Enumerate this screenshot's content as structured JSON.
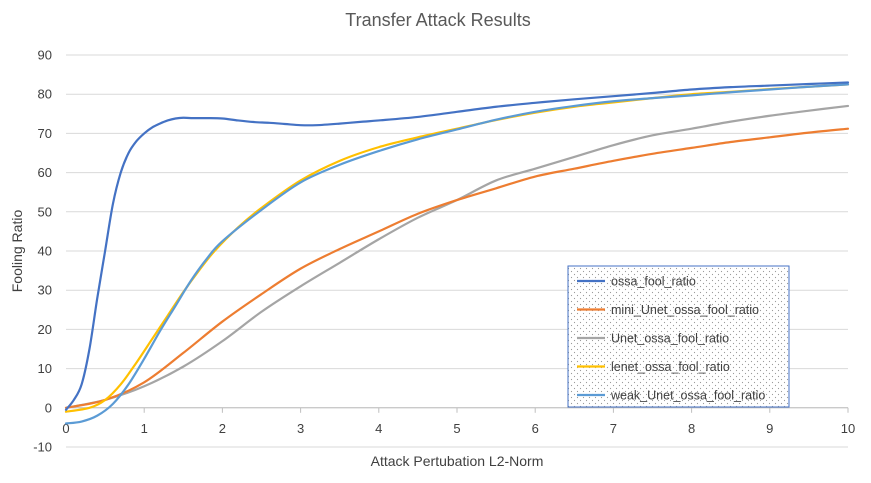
{
  "chart_data": {
    "type": "line",
    "title": "Transfer Attack Results",
    "xlabel": "Attack Pertubation L2-Norm",
    "ylabel": "Fooling Ratio",
    "xlim": [
      0,
      10
    ],
    "ylim": [
      -10,
      90
    ],
    "xticks": [
      0,
      1,
      2,
      3,
      4,
      5,
      6,
      7,
      8,
      9,
      10
    ],
    "yticks": [
      -10,
      0,
      10,
      20,
      30,
      40,
      50,
      60,
      70,
      80,
      90
    ],
    "grid": "horizontal",
    "legend_position": "bottom-right",
    "series": [
      {
        "name": "ossa_fool_ratio",
        "color": "#4472C4",
        "x": [
          0,
          0.1,
          0.2,
          0.3,
          0.4,
          0.5,
          0.6,
          0.7,
          0.8,
          0.9,
          1.0,
          1.1,
          1.2,
          1.3,
          1.4,
          1.5,
          1.6,
          1.8,
          2.0,
          2.2,
          2.4,
          2.6,
          2.8,
          3.0,
          3.2,
          3.5,
          3.8,
          4.0,
          4.5,
          5.0,
          5.5,
          6.0,
          6.5,
          7.0,
          7.5,
          8.0,
          8.5,
          9.0,
          9.5,
          10.0
        ],
        "y": [
          -0.5,
          2,
          6,
          15,
          28,
          40,
          52,
          60,
          65,
          68,
          70,
          71.5,
          72.5,
          73.3,
          73.8,
          74,
          73.9,
          73.9,
          73.8,
          73.3,
          72.9,
          72.7,
          72.4,
          72.1,
          72.1,
          72.5,
          73,
          73.3,
          74.2,
          75.5,
          76.8,
          77.8,
          78.7,
          79.5,
          80.3,
          81.2,
          81.8,
          82.2,
          82.6,
          83
        ]
      },
      {
        "name": "mini_Unet_ossa_fool_ratio",
        "color": "#ED7D31",
        "x": [
          0,
          0.5,
          1.0,
          1.5,
          2.0,
          2.5,
          3.0,
          3.5,
          4.0,
          4.5,
          5.0,
          5.5,
          6.0,
          6.5,
          7.0,
          7.5,
          8.0,
          8.5,
          9.0,
          9.5,
          10.0
        ],
        "y": [
          0,
          2,
          6.5,
          14,
          22,
          29,
          35.5,
          40.5,
          45,
          49.5,
          53,
          56,
          59,
          61,
          63,
          64.8,
          66.3,
          67.8,
          69,
          70.2,
          71.2
        ]
      },
      {
        "name": "Unet_ossa_fool_ratio",
        "color": "#A5A5A5",
        "x": [
          0,
          0.5,
          1.0,
          1.5,
          2.0,
          2.5,
          3.0,
          3.5,
          4.0,
          4.5,
          5.0,
          5.5,
          6.0,
          6.5,
          7.0,
          7.5,
          8.0,
          8.5,
          9.0,
          9.5,
          10.0
        ],
        "y": [
          0,
          2,
          5.5,
          10.5,
          17,
          24.5,
          31,
          37,
          43,
          48.5,
          53,
          58,
          61,
          64,
          67,
          69.5,
          71.2,
          73,
          74.5,
          75.8,
          77
        ]
      },
      {
        "name": "lenet_ossa_fool_ratio",
        "color": "#FFC000",
        "x": [
          0,
          0.3,
          0.5,
          0.7,
          0.9,
          1.1,
          1.3,
          1.5,
          1.7,
          1.9,
          2.2,
          2.5,
          3.0,
          3.5,
          4.0,
          4.5,
          5.0,
          5.5,
          6.0,
          6.5,
          7.0,
          7.5,
          8.0,
          8.5,
          9.0,
          9.5,
          10.0
        ],
        "y": [
          -1,
          0,
          2,
          6,
          11.5,
          17.5,
          23.5,
          29.5,
          35,
          40,
          46,
          51,
          58,
          63,
          66.5,
          69,
          71.2,
          73.4,
          75.3,
          76.8,
          77.9,
          79,
          80,
          80.6,
          81.3,
          81.9,
          82.5
        ]
      },
      {
        "name": "weak_Unet_ossa_fool_ratio",
        "color": "#5B9BD5",
        "x": [
          0,
          0.2,
          0.4,
          0.6,
          0.8,
          1.0,
          1.2,
          1.4,
          1.6,
          1.8,
          2.0,
          2.5,
          3.0,
          3.5,
          4.0,
          4.5,
          5.0,
          5.5,
          6.0,
          6.5,
          7.0,
          7.5,
          8.0,
          8.5,
          9.0,
          9.5,
          10.0
        ],
        "y": [
          -4,
          -3.5,
          -2,
          1,
          6,
          12.5,
          19.5,
          26,
          32.5,
          38,
          42.5,
          50.5,
          57.5,
          62,
          65.5,
          68.5,
          71,
          73.5,
          75.5,
          77,
          78.2,
          79,
          79.7,
          80.5,
          81.2,
          81.9,
          82.5
        ]
      }
    ]
  }
}
